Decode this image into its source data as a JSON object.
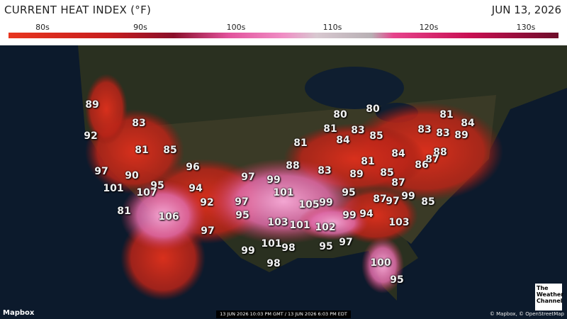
{
  "header": {
    "title": "CURRENT HEAT INDEX (°F)",
    "date": "JUN 13, 2026"
  },
  "legend": {
    "labels": [
      "80s",
      "90s",
      "100s",
      "110s",
      "120s",
      "130s"
    ]
  },
  "map": {
    "labels": [
      89,
      83,
      92,
      81,
      85,
      96,
      97,
      90,
      101,
      95,
      107,
      94,
      92,
      81,
      106,
      97,
      97,
      99,
      88,
      81,
      83,
      80,
      81,
      83,
      84,
      85,
      80,
      81,
      84,
      83,
      83,
      89,
      88,
      87,
      86,
      84,
      81,
      89,
      85,
      87,
      101,
      97,
      95,
      95,
      87,
      97,
      99,
      85,
      105,
      99,
      103,
      101,
      102,
      99,
      94,
      103,
      101,
      98,
      95,
      97,
      99,
      98,
      100,
      95
    ]
  },
  "footer": {
    "timestamp": "13 JUN 2026 10:03 PM GMT / 13 JUN 2026 6:03 PM EDT",
    "mapbox": "Mapbox",
    "attribution": "© Mapbox, © OpenStreetMap",
    "logo": "The Weather Channel"
  }
}
